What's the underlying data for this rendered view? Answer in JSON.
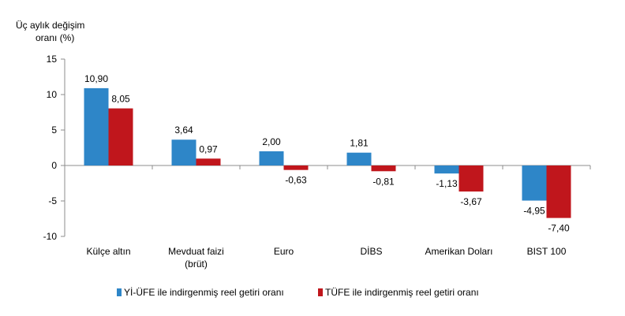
{
  "chart_data": {
    "type": "bar",
    "ylabel_lines": [
      "Üç aylık değişim",
      "oranı (%)"
    ],
    "categories": [
      [
        "Külçe altın"
      ],
      [
        "Mevduat faizi",
        "(brüt)"
      ],
      [
        "Euro"
      ],
      [
        "DİBS"
      ],
      [
        "Amerikan Doları"
      ],
      [
        "BIST 100"
      ]
    ],
    "series": [
      {
        "name": "Yİ-ÜFE ile indirgenmiş reel getiri oranı",
        "color": "#2e86c8",
        "values": [
          10.9,
          3.64,
          2.0,
          1.81,
          -1.13,
          -4.95
        ],
        "labels": [
          "10,90",
          "3,64",
          "2,00",
          "1,81",
          "-1,13",
          "-4,95"
        ]
      },
      {
        "name": "TÜFE ile indirgenmiş reel getiri oranı",
        "color": "#c0161c",
        "values": [
          8.05,
          0.97,
          -0.63,
          -0.81,
          -3.67,
          -7.4
        ],
        "labels": [
          "8,05",
          "0,97",
          "-0,63",
          "-0,81",
          "-3,67",
          "-7,40"
        ]
      }
    ],
    "ylim": [
      -10,
      15
    ],
    "yticks": [
      15,
      10,
      5,
      0,
      -5,
      -10
    ],
    "grid": false,
    "legend_position": "bottom"
  }
}
